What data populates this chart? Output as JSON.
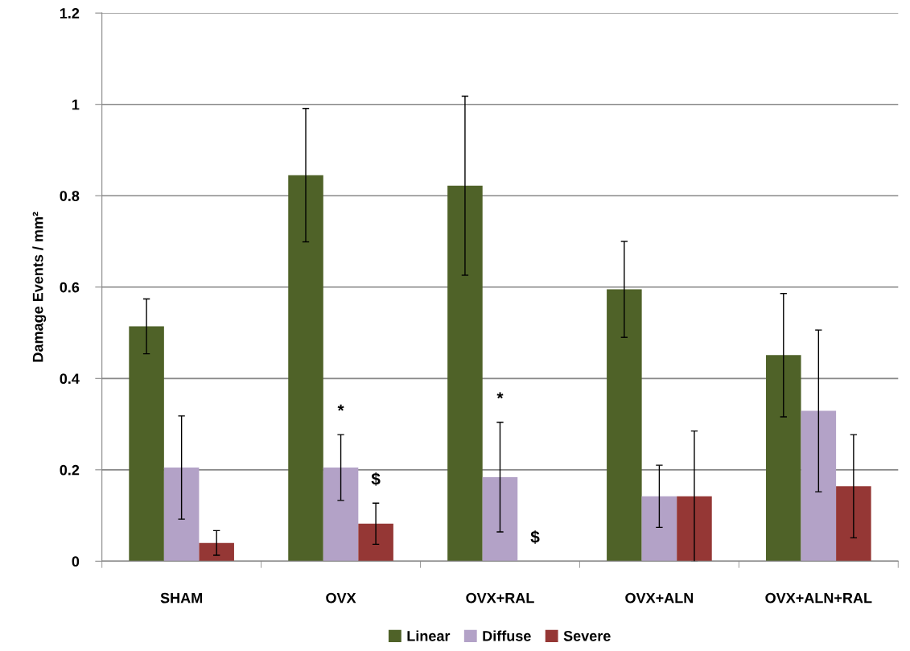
{
  "chart_data": {
    "type": "bar",
    "ylabel": "Damage Events / mm²",
    "categories": [
      "SHAM",
      "OVX",
      "OVX+RAL",
      "OVX+ALN",
      "OVX+ALN+RAL"
    ],
    "series": [
      {
        "name": "Linear",
        "color": "#4f6228",
        "values": [
          0.514,
          0.845,
          0.822,
          0.595,
          0.451
        ],
        "errors": [
          0.06,
          0.146,
          0.196,
          0.105,
          0.135
        ]
      },
      {
        "name": "Diffuse",
        "color": "#b3a2c7",
        "values": [
          0.205,
          0.205,
          0.184,
          0.142,
          0.329
        ],
        "errors": [
          0.113,
          0.072,
          0.12,
          0.068,
          0.177
        ]
      },
      {
        "name": "Severe",
        "color": "#953735",
        "values": [
          0.04,
          0.082,
          0,
          0.142,
          0.164
        ],
        "errors": [
          0.027,
          0.045,
          null,
          0.143,
          0.113
        ]
      }
    ],
    "annotations": [
      "*",
      "$",
      "*",
      "$"
    ],
    "ylim": [
      0,
      1.2
    ],
    "yticks": [
      0,
      0.2,
      0.4,
      0.6,
      0.8,
      1,
      1.2
    ],
    "grid": "y",
    "legend": "bottom"
  }
}
